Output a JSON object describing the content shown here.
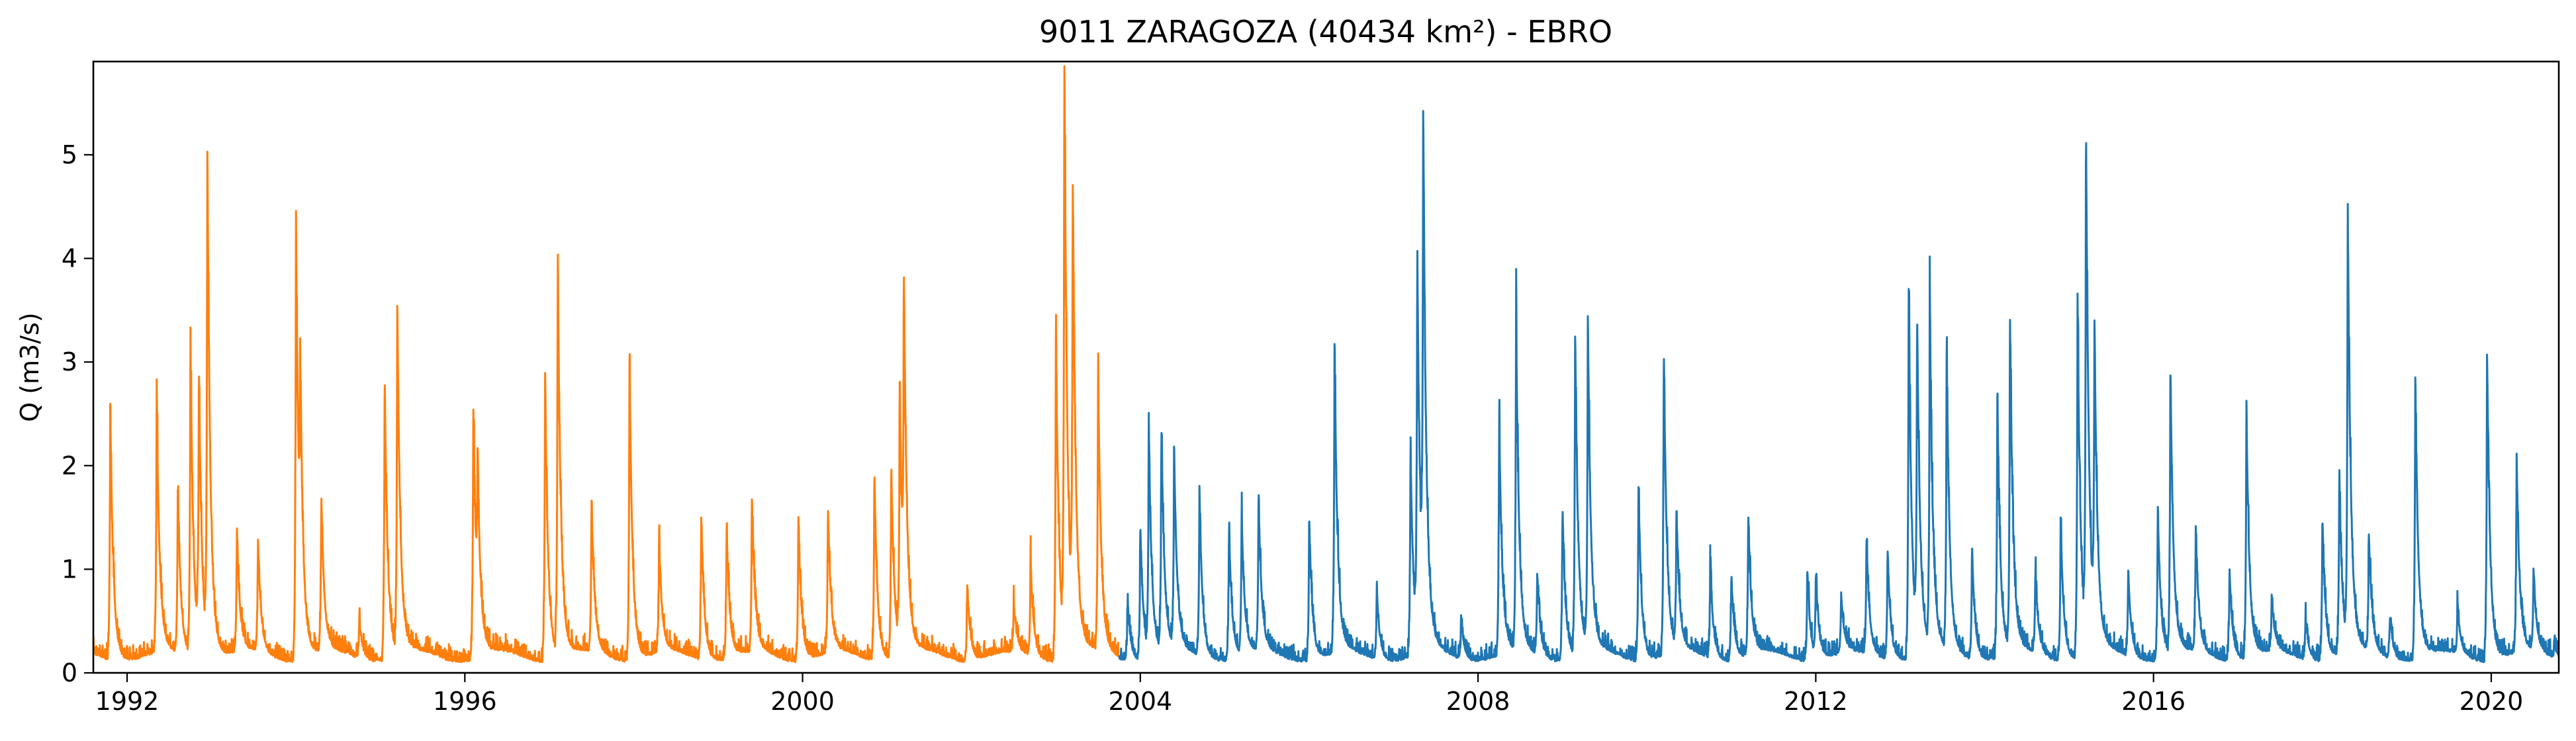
{
  "chart_data": {
    "type": "line",
    "title": "9011 ZARAGOZA (40434 km²) - EBRO",
    "ylabel": "Q (m3/s)",
    "xlabel": "",
    "x_range": [
      1991.6,
      2020.8
    ],
    "ylim": [
      0,
      5.9
    ],
    "x_ticks": [
      1992,
      1996,
      2000,
      2004,
      2008,
      2012,
      2016,
      2020
    ],
    "y_ticks": [
      0,
      1,
      2,
      3,
      4,
      5
    ],
    "grid": false,
    "legend": "none",
    "series": [
      {
        "color": "#ff7f0e",
        "x_range": [
          1991.6,
          2003.75
        ],
        "baseline": 0.15,
        "peaks": [
          [
            1991.8,
            2.55
          ],
          [
            1992.35,
            2.5
          ],
          [
            1992.6,
            1.7
          ],
          [
            1992.75,
            3.1
          ],
          [
            1992.85,
            2.7
          ],
          [
            1992.95,
            4.75
          ],
          [
            1993.3,
            1.3
          ],
          [
            1993.55,
            1.2
          ],
          [
            1994.0,
            4.4
          ],
          [
            1994.05,
            1.9
          ],
          [
            1994.3,
            1.6
          ],
          [
            1994.75,
            0.5
          ],
          [
            1995.05,
            2.8
          ],
          [
            1995.2,
            3.4
          ],
          [
            1996.1,
            2.55
          ],
          [
            1996.15,
            1.5
          ],
          [
            1996.95,
            2.85
          ],
          [
            1997.1,
            3.95
          ],
          [
            1997.5,
            1.6
          ],
          [
            1997.95,
            3.0
          ],
          [
            1998.3,
            1.2
          ],
          [
            1998.8,
            1.5
          ],
          [
            1999.1,
            1.4
          ],
          [
            1999.4,
            1.6
          ],
          [
            1999.95,
            1.5
          ],
          [
            2000.3,
            1.5
          ],
          [
            2000.85,
            1.95
          ],
          [
            2001.05,
            2.0
          ],
          [
            2001.15,
            2.6
          ],
          [
            2001.2,
            3.1
          ],
          [
            2001.95,
            0.85
          ],
          [
            2002.5,
            0.6
          ],
          [
            2002.7,
            1.05
          ],
          [
            2003.0,
            3.3
          ],
          [
            2003.1,
            5.65
          ],
          [
            2003.2,
            4.25
          ],
          [
            2003.5,
            2.8
          ]
        ]
      },
      {
        "color": "#1f77b4",
        "x_range": [
          2003.75,
          2020.8
        ],
        "baseline": 0.15,
        "peaks": [
          [
            2003.85,
            0.7
          ],
          [
            2004.0,
            1.4
          ],
          [
            2004.1,
            2.25
          ],
          [
            2004.25,
            2.2
          ],
          [
            2004.4,
            2.0
          ],
          [
            2004.7,
            1.7
          ],
          [
            2005.05,
            1.4
          ],
          [
            2005.2,
            1.45
          ],
          [
            2005.4,
            1.6
          ],
          [
            2006.0,
            1.5
          ],
          [
            2006.3,
            3.05
          ],
          [
            2006.8,
            0.8
          ],
          [
            2007.2,
            2.1
          ],
          [
            2007.28,
            3.75
          ],
          [
            2007.35,
            4.75
          ],
          [
            2007.8,
            0.5
          ],
          [
            2008.25,
            2.4
          ],
          [
            2008.45,
            3.3
          ],
          [
            2008.7,
            0.9
          ],
          [
            2009.0,
            1.6
          ],
          [
            2009.15,
            3.2
          ],
          [
            2009.3,
            3.25
          ],
          [
            2009.9,
            1.8
          ],
          [
            2010.2,
            3.05
          ],
          [
            2010.35,
            1.4
          ],
          [
            2010.75,
            1.0
          ],
          [
            2011.0,
            0.95
          ],
          [
            2011.2,
            1.5
          ],
          [
            2011.9,
            1.0
          ],
          [
            2012.0,
            0.9
          ],
          [
            2012.3,
            0.7
          ],
          [
            2012.6,
            1.25
          ],
          [
            2012.85,
            1.2
          ],
          [
            2013.1,
            3.65
          ],
          [
            2013.2,
            3.15
          ],
          [
            2013.35,
            3.4
          ],
          [
            2013.55,
            2.95
          ],
          [
            2013.85,
            1.2
          ],
          [
            2014.15,
            2.65
          ],
          [
            2014.3,
            3.25
          ],
          [
            2014.6,
            0.9
          ],
          [
            2014.9,
            1.5
          ],
          [
            2015.1,
            3.55
          ],
          [
            2015.2,
            4.95
          ],
          [
            2015.3,
            2.9
          ],
          [
            2015.7,
            0.95
          ],
          [
            2016.05,
            1.6
          ],
          [
            2016.2,
            2.85
          ],
          [
            2016.5,
            1.3
          ],
          [
            2016.9,
            1.0
          ],
          [
            2017.1,
            2.5
          ],
          [
            2017.4,
            0.65
          ],
          [
            2017.8,
            0.55
          ],
          [
            2018.0,
            1.5
          ],
          [
            2018.2,
            1.85
          ],
          [
            2018.3,
            4.25
          ],
          [
            2018.55,
            1.25
          ],
          [
            2018.8,
            0.55
          ],
          [
            2019.1,
            2.8
          ],
          [
            2019.6,
            0.6
          ],
          [
            2019.95,
            3.1
          ],
          [
            2020.3,
            2.0
          ],
          [
            2020.5,
            0.9
          ],
          [
            2020.75,
            0.25
          ]
        ]
      }
    ]
  }
}
